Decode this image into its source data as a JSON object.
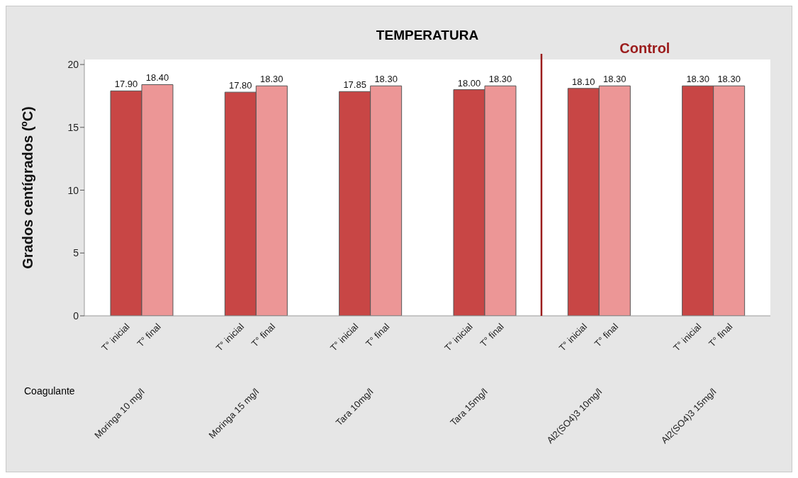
{
  "chart_data": {
    "type": "bar",
    "title": "TEMPERATURA",
    "ylabel": "Grados centígrados (ºC)",
    "xlabel": "Coagulante",
    "categories": [
      "Moringa 10 mg/l",
      "Moringa 15 mg/l",
      "Tara 10mg/l",
      "Tara 15mg/l",
      "Al2(SO4)3 10mg/l",
      "Al2(SO4)3 15mg/l"
    ],
    "series": [
      {
        "name": "T° inicial",
        "color": "#c84645",
        "values": [
          17.9,
          17.8,
          17.85,
          18.0,
          18.1,
          18.3
        ],
        "value_labels": [
          "17.90",
          "17.80",
          "17.85",
          "18.00",
          "18.10",
          "18.30"
        ]
      },
      {
        "name": "T° final",
        "color": "#ec9696",
        "values": [
          18.4,
          18.3,
          18.3,
          18.3,
          18.3,
          18.3
        ],
        "value_labels": [
          "18.40",
          "18.30",
          "18.30",
          "18.30",
          "18.30",
          "18.30"
        ]
      }
    ],
    "ylim": [
      0,
      20.4
    ],
    "yticks": [
      0,
      5,
      10,
      15,
      20
    ],
    "ref_lines": [
      {
        "axis": "x",
        "value": "Al2(SO4)3 10mg/l",
        "label": "Control",
        "color": "#9b1c1c"
      }
    ]
  }
}
